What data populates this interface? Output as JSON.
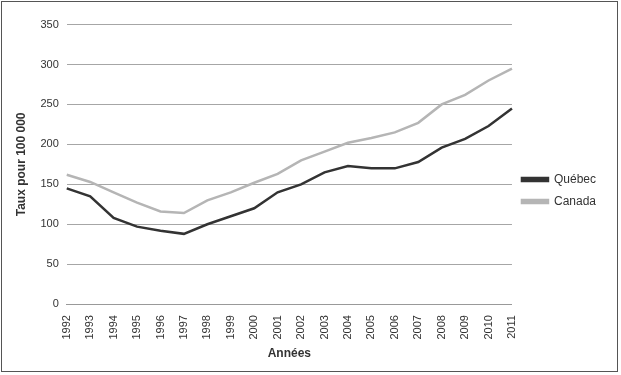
{
  "chart_data": {
    "type": "line",
    "x_label": "Années",
    "y_label": "Taux pour 100 000",
    "categories": [
      "1992",
      "1993",
      "1994",
      "1995",
      "1996",
      "1997",
      "1998",
      "1999",
      "2000",
      "2001",
      "2002",
      "2003",
      "2004",
      "2005",
      "2006",
      "2007",
      "2008",
      "2009",
      "2010",
      "2011"
    ],
    "series": [
      {
        "name": "Québec",
        "color": "#333333",
        "values": [
          145,
          135,
          108,
          97,
          92,
          88,
          100,
          110,
          120,
          140,
          150,
          165,
          173,
          170,
          170,
          178,
          196,
          207,
          223,
          245
        ]
      },
      {
        "name": "Canada",
        "color": "#b5b5b5",
        "values": [
          162,
          153,
          140,
          127,
          116,
          114,
          130,
          140,
          152,
          163,
          180,
          191,
          202,
          208,
          215,
          227,
          250,
          262,
          280,
          295
        ]
      }
    ],
    "ylim": [
      0,
      350
    ],
    "yticks": [
      0,
      50,
      100,
      150,
      200,
      250,
      300,
      350
    ],
    "grid": true,
    "legend": "right"
  }
}
